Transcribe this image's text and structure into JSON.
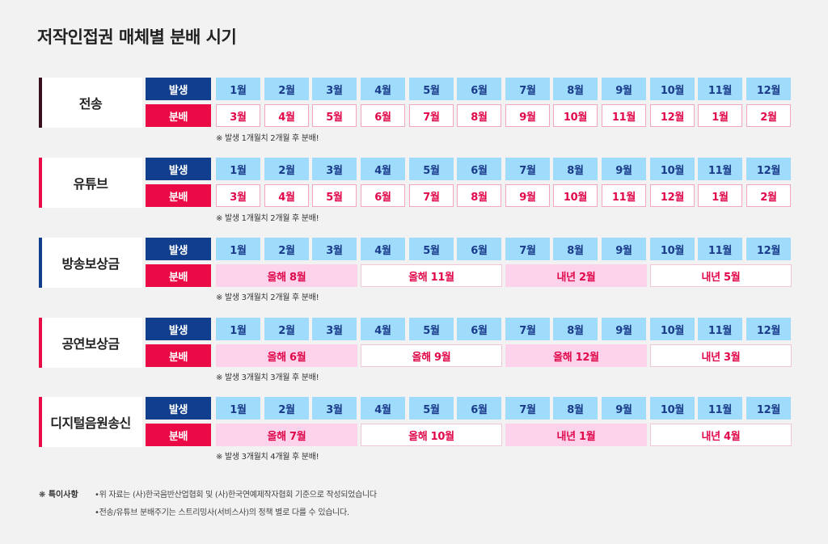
{
  "title": "저작인접권 매체별 분배 시기",
  "labels": {
    "occurrence": "발생",
    "distribution": "분배"
  },
  "months": [
    "1월",
    "2월",
    "3월",
    "4월",
    "5월",
    "6월",
    "7월",
    "8월",
    "9월",
    "10월",
    "11월",
    "12월"
  ],
  "colors": {
    "navy": "#123f8d",
    "red": "#ea0a45",
    "light_blue": "#9fdcfb",
    "pink": "#fdd3ec",
    "maroon": "#3a0f1f"
  },
  "sections": [
    {
      "name": "전송",
      "bar_color": "#3a0f1f",
      "distribution": [
        "3월",
        "4월",
        "5월",
        "6월",
        "7월",
        "8월",
        "9월",
        "10월",
        "11월",
        "12월",
        "1월",
        "2월"
      ],
      "note": "※ 발생 1개월치 2개월 후 분배!"
    },
    {
      "name": "유튜브",
      "bar_color": "#ea0a45",
      "distribution": [
        "3월",
        "4월",
        "5월",
        "6월",
        "7월",
        "8월",
        "9월",
        "10월",
        "11월",
        "12월",
        "1월",
        "2월"
      ],
      "note": "※ 발생 1개월치 2개월 후 분배!"
    },
    {
      "name": "방송보상금",
      "bar_color": "#123f8d",
      "distribution": [
        "올해 8월",
        "올해 11월",
        "내년 2월",
        "내년 5월"
      ],
      "note": "※ 발생 3개월치 2개월 후 분배!"
    },
    {
      "name": "공연보상금",
      "bar_color": "#ea0a45",
      "distribution": [
        "올해 6월",
        "올해 9월",
        "올해 12월",
        "내년 3월"
      ],
      "note": "※ 발생 3개월치 3개월 후 분배!"
    },
    {
      "name": "디지털음원송신",
      "bar_color": "#ea0a45",
      "distribution": [
        "올해 7월",
        "올해 10월",
        "내년 1월",
        "내년 4월"
      ],
      "note": "※ 발생 3개월치 4개월 후 분배!"
    }
  ],
  "special": {
    "label": "❋ 특이사항",
    "lines": [
      "•위 자료는 (사)한국음반산업협회 및 (사)한국연예제작자협회 기준으로 작성되었습니다",
      "•전송/유튜브 분배주기는 스트리밍사(서비스사)의 정책 별로 다를 수 있습니다."
    ]
  }
}
